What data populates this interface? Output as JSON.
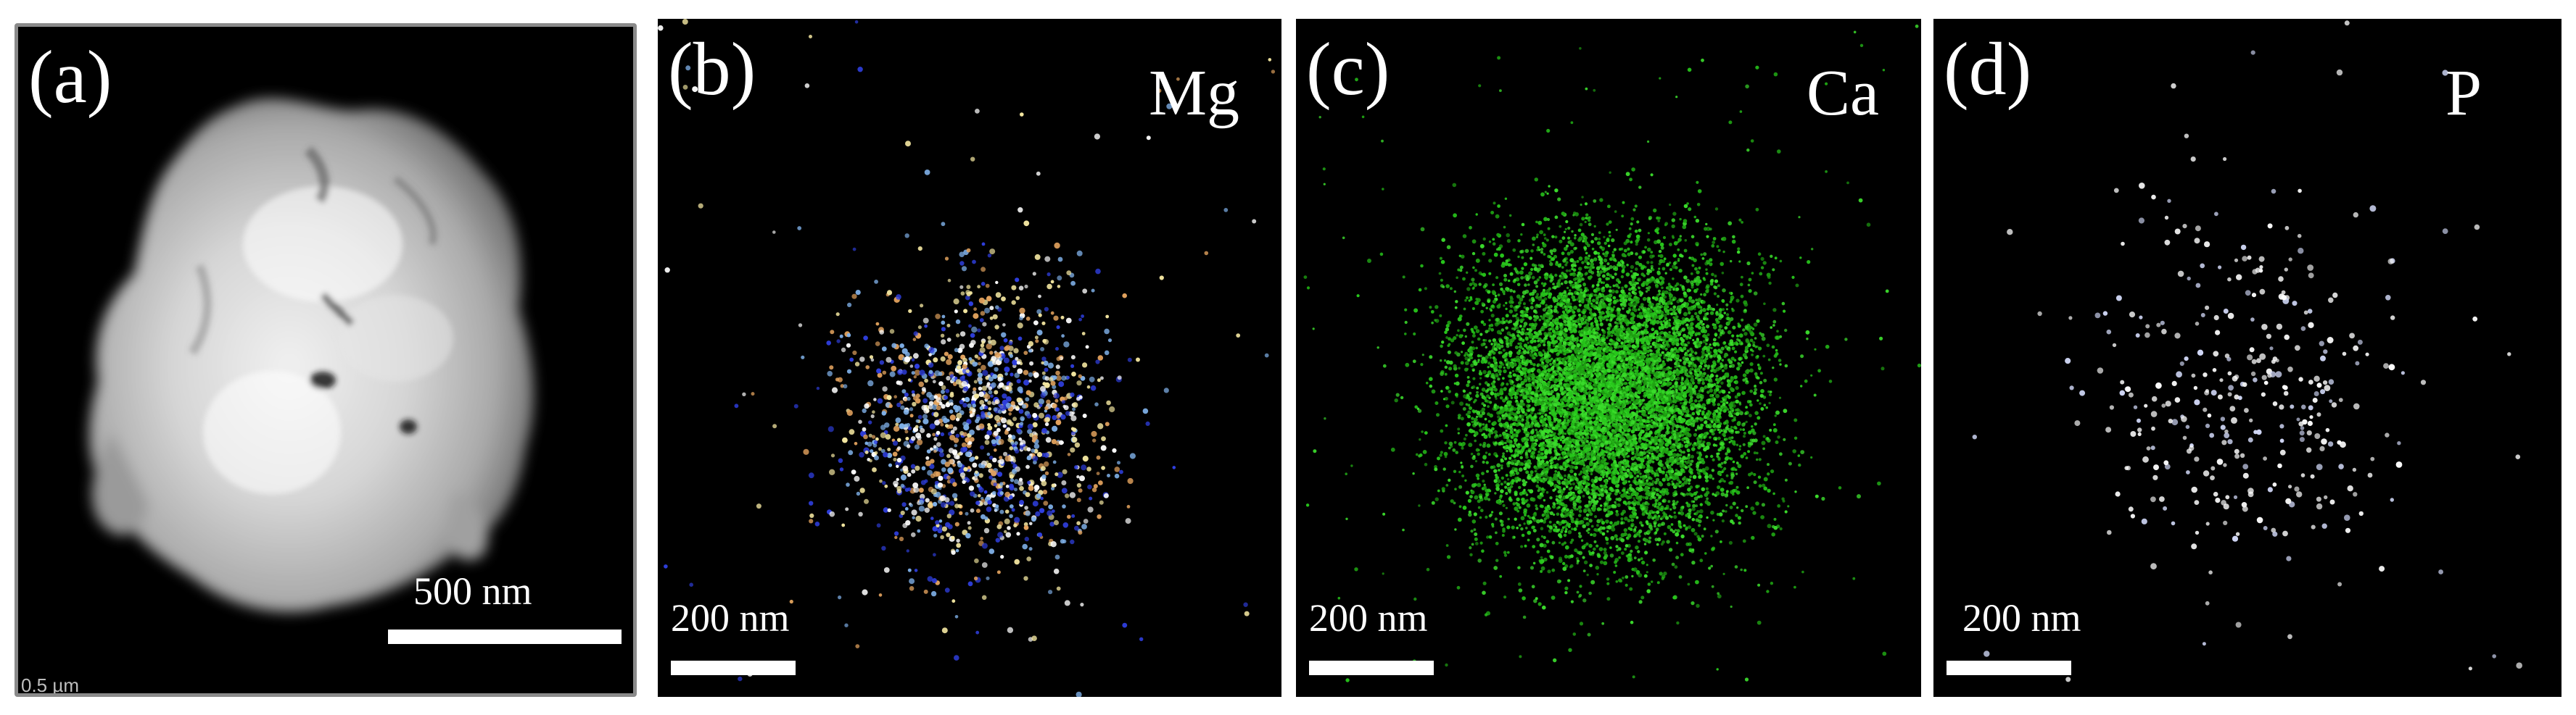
{
  "figure": {
    "panels": [
      {
        "id": "a",
        "label": "(a)",
        "element": "",
        "scale_bar_text": "500 nm",
        "corner_text": "0.5 µm"
      },
      {
        "id": "b",
        "label": "(b)",
        "element": "Mg",
        "scale_bar_text": "200 nm",
        "dot_colors": [
          "#f3e6a0",
          "#e3a35e",
          "#2f3fe0",
          "#ffffff",
          "#7fb0e8"
        ]
      },
      {
        "id": "c",
        "label": "(c)",
        "element": "Ca",
        "scale_bar_text": "200 nm",
        "dot_colors": [
          "#27c81b",
          "#1ea012",
          "#3bdc2c"
        ]
      },
      {
        "id": "d",
        "label": "(d)",
        "element": "P",
        "scale_bar_text": "200 nm",
        "dot_colors": [
          "#f2f2f2",
          "#cfd6f5",
          "#ffffff"
        ]
      }
    ]
  }
}
